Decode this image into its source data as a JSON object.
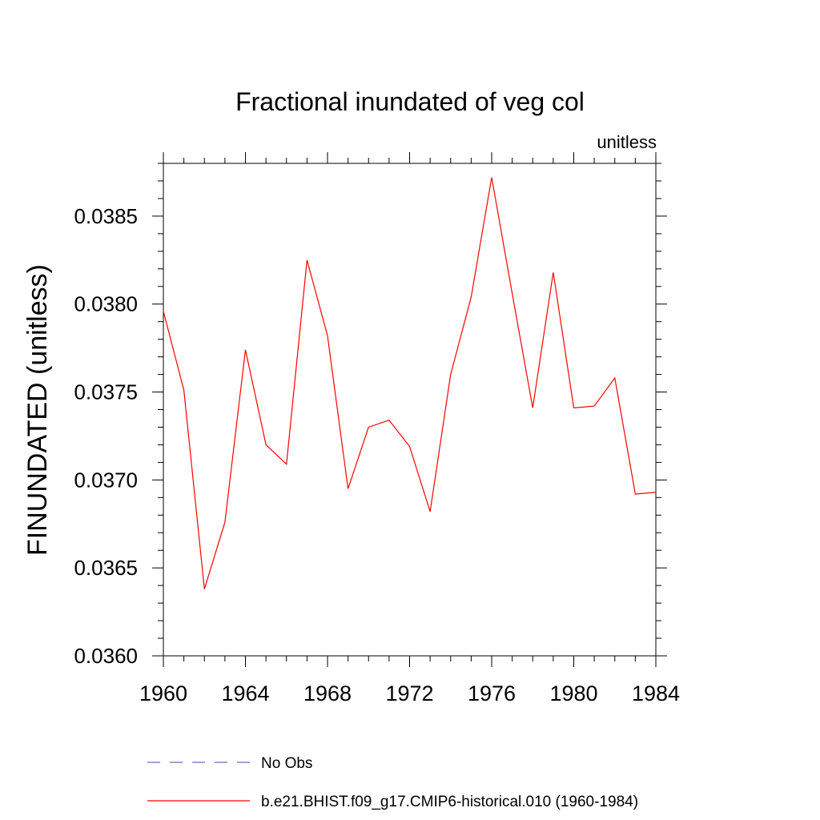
{
  "chart_data": {
    "type": "line",
    "title": "Fractional inundated of veg col",
    "units_label": "unitless",
    "xlabel": "",
    "ylabel": "FINUNDATED  (unitless)",
    "xlim": [
      1960,
      1984
    ],
    "ylim": [
      0.036,
      0.0388
    ],
    "x_ticks": [
      1960,
      1964,
      1968,
      1972,
      1976,
      1980,
      1984
    ],
    "x_tick_labels": [
      "1960",
      "1964",
      "1968",
      "1972",
      "1976",
      "1980",
      "1984"
    ],
    "y_ticks": [
      0.036,
      0.0365,
      0.037,
      0.0375,
      0.038,
      0.0385
    ],
    "y_tick_labels": [
      "0.0360",
      "0.0365",
      "0.0370",
      "0.0375",
      "0.0380",
      "0.0385"
    ],
    "grid": false,
    "legend_position": "bottom",
    "series": [
      {
        "name": "No Obs",
        "color": "#6b6bb8",
        "style": "dashed",
        "x": [],
        "values": []
      },
      {
        "name": "b.e21.BHIST.f09_g17.CMIP6-historical.010 (1960-1984)",
        "color": "#ff0000",
        "style": "solid",
        "x": [
          1960,
          1961,
          1962,
          1963,
          1964,
          1965,
          1966,
          1967,
          1968,
          1969,
          1970,
          1971,
          1972,
          1973,
          1974,
          1975,
          1976,
          1977,
          1978,
          1979,
          1980,
          1981,
          1982,
          1983,
          1984
        ],
        "values": [
          0.03796,
          0.03751,
          0.03638,
          0.03676,
          0.03774,
          0.0372,
          0.03709,
          0.03825,
          0.03782,
          0.03695,
          0.0373,
          0.03734,
          0.03719,
          0.03682,
          0.0376,
          0.03804,
          0.03872,
          0.03806,
          0.03741,
          0.03818,
          0.03741,
          0.03742,
          0.03758,
          0.03692,
          0.03693
        ]
      }
    ]
  }
}
